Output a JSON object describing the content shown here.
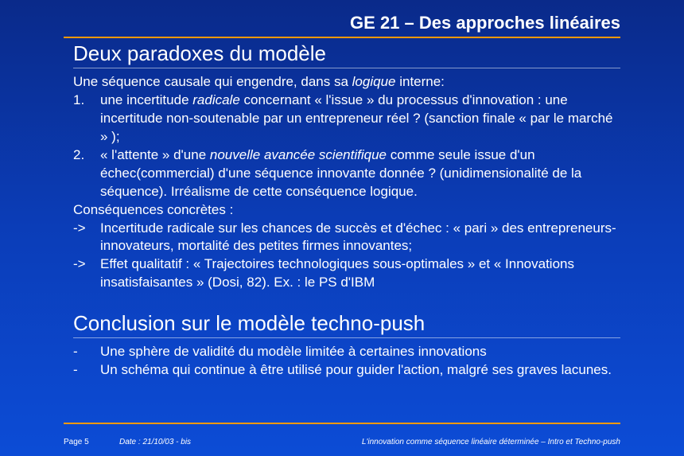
{
  "header": {
    "title": "GE 21 – Des approches linéaires"
  },
  "section1": {
    "title": "Deux paradoxes du modèle",
    "intro_a": "Une séquence causale qui engendre, dans sa ",
    "intro_i": "logique",
    "intro_b": " interne:",
    "item1_num": "1.",
    "item1_a": "une incertitude ",
    "item1_i": "radicale",
    "item1_b": " concernant « l'issue » du processus d'innovation : une incertitude non-soutenable par un entrepreneur réel ? (sanction finale « par le marché » );",
    "item2_num": "2.",
    "item2_a": "« l'attente » d'une ",
    "item2_i": "nouvelle avancée scientifique",
    "item2_b": " comme seule issue d'un échec(commercial) d'une séquence innovante donnée ? (unidimensionalité de la séquence). Irréalisme de cette conséquence logique.",
    "cons_label": "Conséquences concrètes :",
    "cons1_arrow": "->",
    "cons1": "Incertitude radicale sur les chances de succès et d'échec : « pari » des entrepreneurs-innovateurs, mortalité des petites firmes innovantes;",
    "cons2_arrow": "->",
    "cons2": "Effet qualitatif : « Trajectoires technologiques sous-optimales » et « Innovations insatisfaisantes » (Dosi, 82). Ex. : le PS d'IBM"
  },
  "section2": {
    "title": "Conclusion sur le modèle techno-push",
    "d1_dash": "-",
    "d1": "Une sphère de validité du modèle limitée à certaines innovations",
    "d2_dash": "-",
    "d2": "Un schéma qui continue à être utilisé pour guider l'action, malgré ses graves lacunes."
  },
  "footer": {
    "page": "Page 5",
    "date": "Date : 21/10/03 - bis",
    "course": "L'innovation comme séquence linéaire déterminée – Intro et Techno-push"
  },
  "colors": {
    "accent": "#ff9900",
    "bg_top": "#0a2a8a",
    "bg_bottom": "#0c4cd6",
    "text": "#ffffff"
  }
}
